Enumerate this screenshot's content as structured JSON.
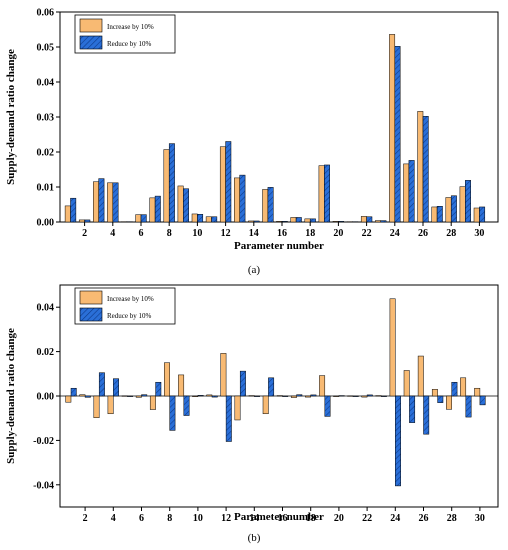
{
  "colors": {
    "increase": "#F8BA73",
    "reduce": "#2A6FD8",
    "hatch": "#0D3A8A"
  },
  "chart_data": [
    {
      "type": "bar",
      "label": "(a)",
      "xlabel": "Parameter number",
      "ylabel": "Supply-demand ratio change",
      "ylim": [
        0,
        0.06
      ],
      "yticks": [
        "0.00",
        "0.01",
        "0.02",
        "0.03",
        "0.04",
        "0.05",
        "0.06"
      ],
      "yticks_values": [
        0,
        0.01,
        0.02,
        0.03,
        0.04,
        0.05,
        0.06
      ],
      "xticks": [
        "2",
        "4",
        "6",
        "8",
        "10",
        "12",
        "14",
        "16",
        "18",
        "20",
        "22",
        "24",
        "26",
        "28",
        "30"
      ],
      "legend_position": "top-left",
      "categories": [
        1,
        2,
        3,
        4,
        5,
        6,
        7,
        8,
        9,
        10,
        11,
        12,
        13,
        14,
        15,
        16,
        17,
        18,
        19,
        20,
        21,
        22,
        23,
        24,
        25,
        26,
        27,
        28,
        29,
        30
      ],
      "series": [
        {
          "name": "Increase by 10%",
          "values": [
            0.0046,
            0.0006,
            0.0115,
            0.0112,
            0.0001,
            0.0021,
            0.0069,
            0.0207,
            0.0103,
            0.0023,
            0.0015,
            0.0215,
            0.0126,
            0.0003,
            0.0093,
            0.0002,
            0.0013,
            0.0009,
            0.0161,
            0.0002,
            0.0001,
            0.0016,
            0.0004,
            0.0536,
            0.0166,
            0.0316,
            0.0043,
            0.007,
            0.0101,
            0.004
          ]
        },
        {
          "name": "Reduce by 10%",
          "values": [
            0.0068,
            0.0006,
            0.0124,
            0.0112,
            0.0001,
            0.0021,
            0.0074,
            0.0224,
            0.0095,
            0.0022,
            0.0015,
            0.023,
            0.0134,
            0.0003,
            0.0099,
            0.0002,
            0.0013,
            0.0009,
            0.0163,
            0.0002,
            0.0001,
            0.0015,
            0.0004,
            0.0502,
            0.0176,
            0.0302,
            0.0045,
            0.0075,
            0.0119,
            0.0043
          ]
        }
      ]
    },
    {
      "type": "bar",
      "label": "(b)",
      "xlabel": "Parameter number",
      "ylabel": "Supply-demand ratio change",
      "ylim": [
        -0.05,
        0.05
      ],
      "yticks": [
        "-0.04",
        "-0.02",
        "0.00",
        "0.02",
        "0.04"
      ],
      "yticks_values": [
        -0.04,
        -0.02,
        0,
        0.02,
        0.04
      ],
      "xticks": [
        "2",
        "4",
        "6",
        "8",
        "10",
        "12",
        "14",
        "16",
        "18",
        "20",
        "22",
        "24",
        "26",
        "28",
        "30"
      ],
      "legend_position": "top-left",
      "categories": [
        1,
        2,
        3,
        4,
        5,
        6,
        7,
        8,
        9,
        10,
        11,
        12,
        13,
        14,
        15,
        16,
        17,
        18,
        19,
        20,
        21,
        22,
        23,
        24,
        25,
        26,
        27,
        28,
        29,
        30
      ],
      "series": [
        {
          "name": "Increase by 10%",
          "values": [
            -0.0028,
            0.0006,
            -0.0098,
            -0.008,
            0.0001,
            -0.0006,
            -0.0061,
            0.015,
            0.0095,
            -0.0003,
            0.0005,
            0.0192,
            -0.0108,
            0.0002,
            -0.008,
            0.0002,
            -0.0007,
            -0.0005,
            0.0092,
            -0.0002,
            0.0001,
            -0.0005,
            0.0002,
            0.0438,
            0.0115,
            0.018,
            0.003,
            -0.006,
            0.0082,
            0.0035
          ]
        },
        {
          "name": "Reduce by 10%",
          "values": [
            0.0035,
            -0.0006,
            0.0105,
            0.0078,
            -0.0001,
            0.0006,
            0.0062,
            -0.0155,
            -0.0088,
            0.0003,
            -0.0005,
            -0.0205,
            0.0112,
            -0.0002,
            0.0082,
            -0.0002,
            0.0006,
            0.0005,
            -0.0092,
            0.0002,
            -0.0001,
            0.0005,
            -0.0002,
            -0.0405,
            -0.012,
            -0.0172,
            -0.003,
            0.0062,
            -0.0095,
            -0.004
          ]
        }
      ]
    }
  ]
}
